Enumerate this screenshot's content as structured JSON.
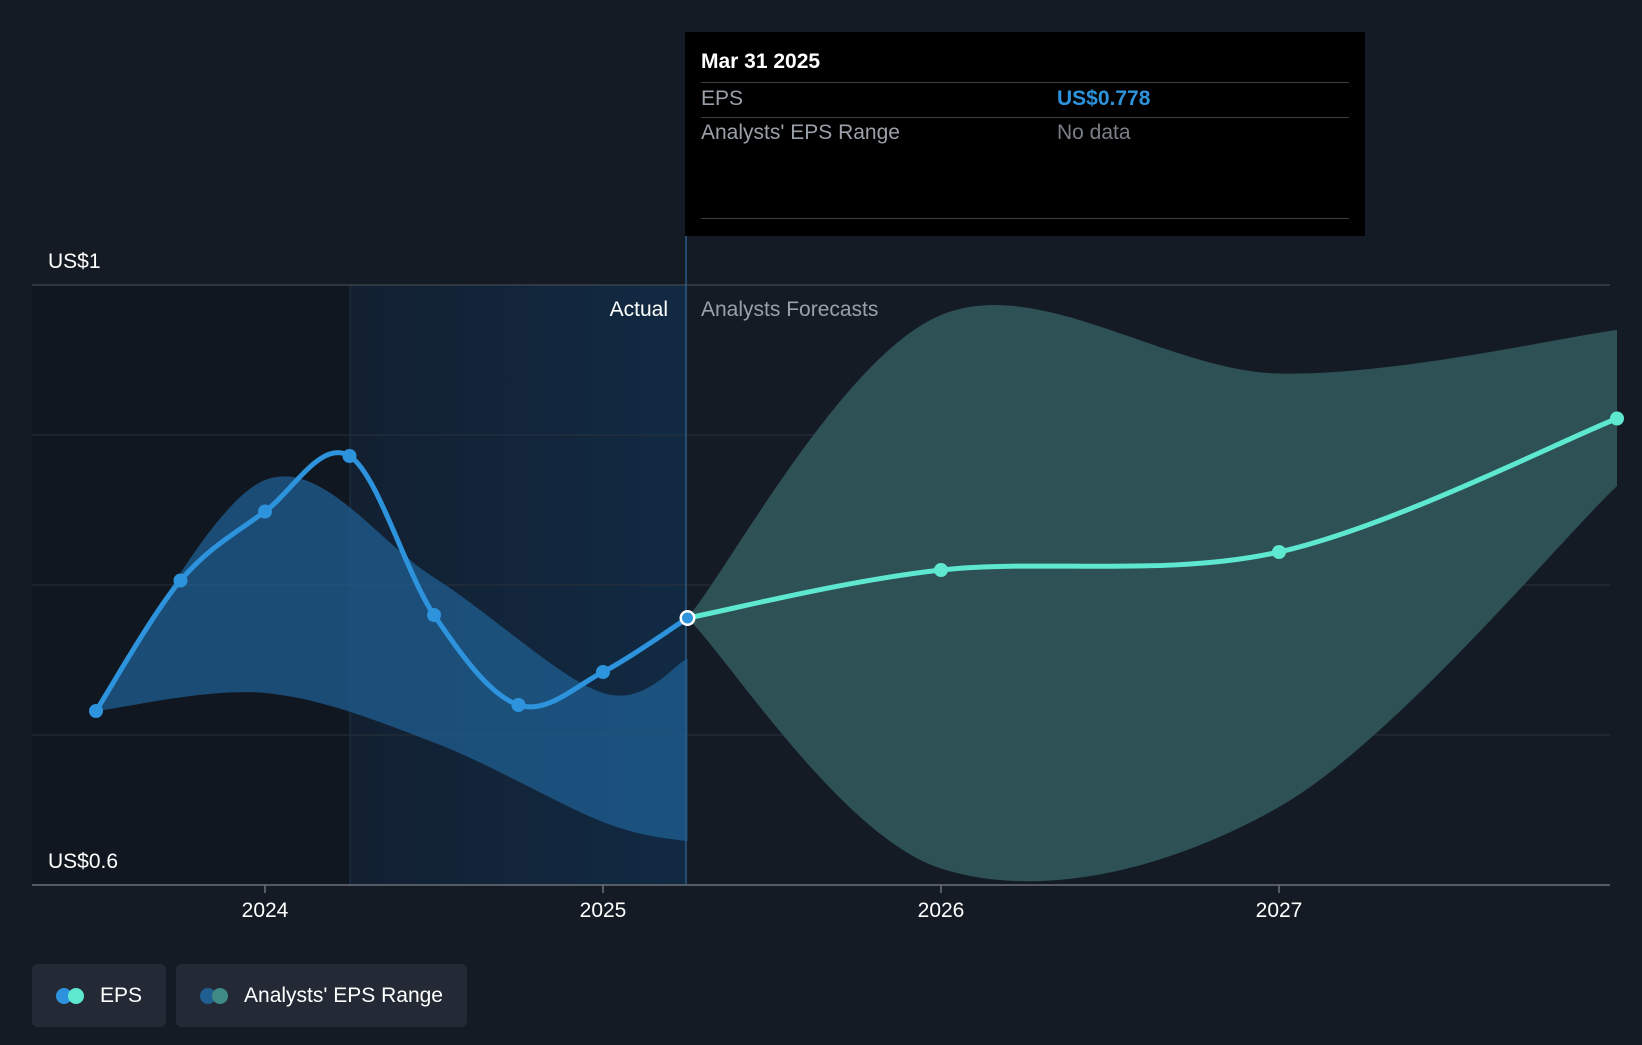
{
  "chart_data": {
    "type": "line",
    "y_axis": {
      "min_label": "US$0.6",
      "max_label": "US$1",
      "ylim": [
        0.6,
        1.0
      ]
    },
    "x_ticks": [
      "2024",
      "2025",
      "2026",
      "2027"
    ],
    "regions": {
      "actual_label": "Actual",
      "forecast_label": "Analysts Forecasts"
    },
    "series": [
      {
        "name": "EPS",
        "kind": "actual",
        "color": "#2d93dc",
        "points": [
          {
            "x": 2023.5,
            "y": 0.716
          },
          {
            "x": 2023.75,
            "y": 0.803
          },
          {
            "x": 2024.0,
            "y": 0.849
          },
          {
            "x": 2024.25,
            "y": 0.886
          },
          {
            "x": 2024.5,
            "y": 0.78
          },
          {
            "x": 2024.75,
            "y": 0.72
          },
          {
            "x": 2025.0,
            "y": 0.742
          },
          {
            "x": 2025.25,
            "y": 0.778
          }
        ]
      },
      {
        "name": "EPS",
        "kind": "forecast",
        "color": "#5ee8cf",
        "points": [
          {
            "x": 2025.25,
            "y": 0.778
          },
          {
            "x": 2026.0,
            "y": 0.81
          },
          {
            "x": 2027.0,
            "y": 0.822
          },
          {
            "x": 2028.0,
            "y": 0.911
          }
        ]
      }
    ],
    "actual_range": {
      "name": "Analysts' EPS Range",
      "color": "#1f5f92",
      "points": [
        {
          "x": 2023.5,
          "lo": 0.716,
          "hi": 0.716
        },
        {
          "x": 2024.0,
          "lo": 0.728,
          "hi": 0.87
        },
        {
          "x": 2024.5,
          "lo": 0.695,
          "hi": 0.805
        },
        {
          "x": 2025.0,
          "lo": 0.642,
          "hi": 0.728
        },
        {
          "x": 2025.25,
          "lo": 0.629,
          "hi": 0.751
        }
      ]
    },
    "forecast_range": {
      "name": "Analysts' EPS Range",
      "color": "#2e5457",
      "points": [
        {
          "x": 2025.25,
          "lo": 0.778,
          "hi": 0.778
        },
        {
          "x": 2026.0,
          "lo": 0.611,
          "hi": 0.98
        },
        {
          "x": 2027.0,
          "lo": 0.652,
          "hi": 0.941
        },
        {
          "x": 2028.0,
          "lo": 0.866,
          "hi": 0.97
        }
      ]
    }
  },
  "tooltip": {
    "date": "Mar 31 2025",
    "eps_label": "EPS",
    "eps_value": "US$0.778",
    "range_label": "Analysts' EPS Range",
    "range_value": "No data"
  },
  "legend": [
    {
      "label": "EPS",
      "colors": [
        "#2d93dc",
        "#5ee8cf"
      ]
    },
    {
      "label": "Analysts' EPS Range",
      "colors": [
        "#1f5f92",
        "#3f8a86"
      ]
    }
  ]
}
